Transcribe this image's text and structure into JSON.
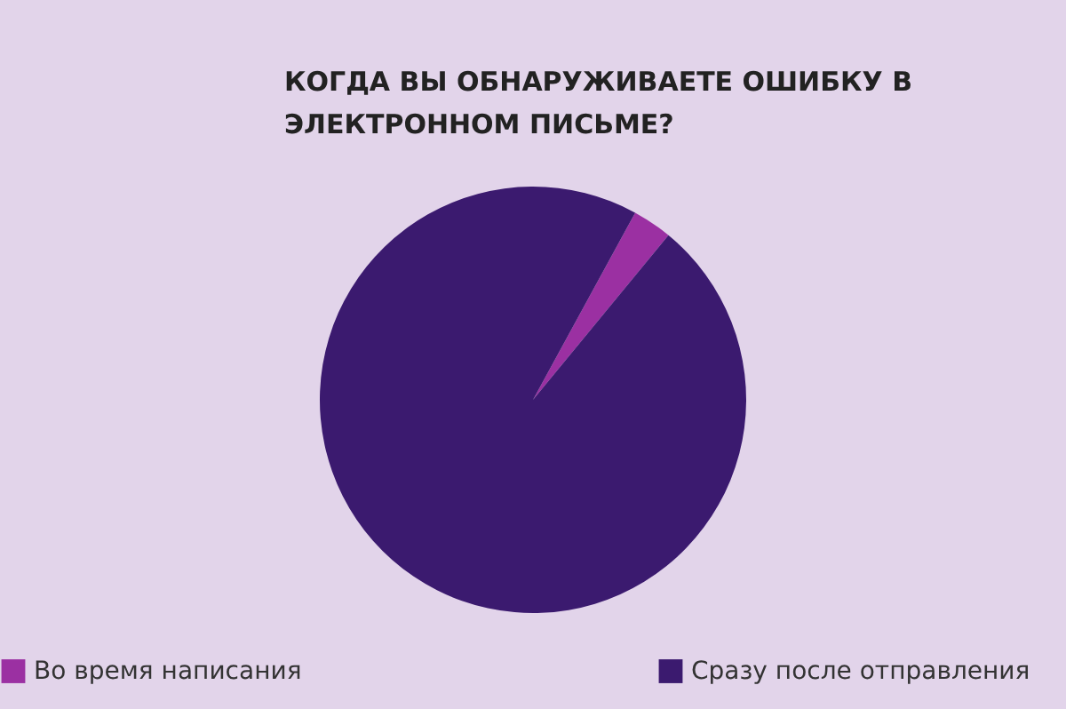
{
  "chart_data": {
    "type": "pie",
    "title": "КОГДА ВЫ ОБНАРУЖИВАЕТЕ ОШИБКУ В ЭЛЕКТРОННОМ ПИСЬМЕ?",
    "categories": [
      "Во время написания",
      "Сразу после отправления"
    ],
    "values": [
      3,
      97
    ],
    "colors": [
      "#9b30a2",
      "#3b1a6f"
    ],
    "legend": "bottom"
  }
}
